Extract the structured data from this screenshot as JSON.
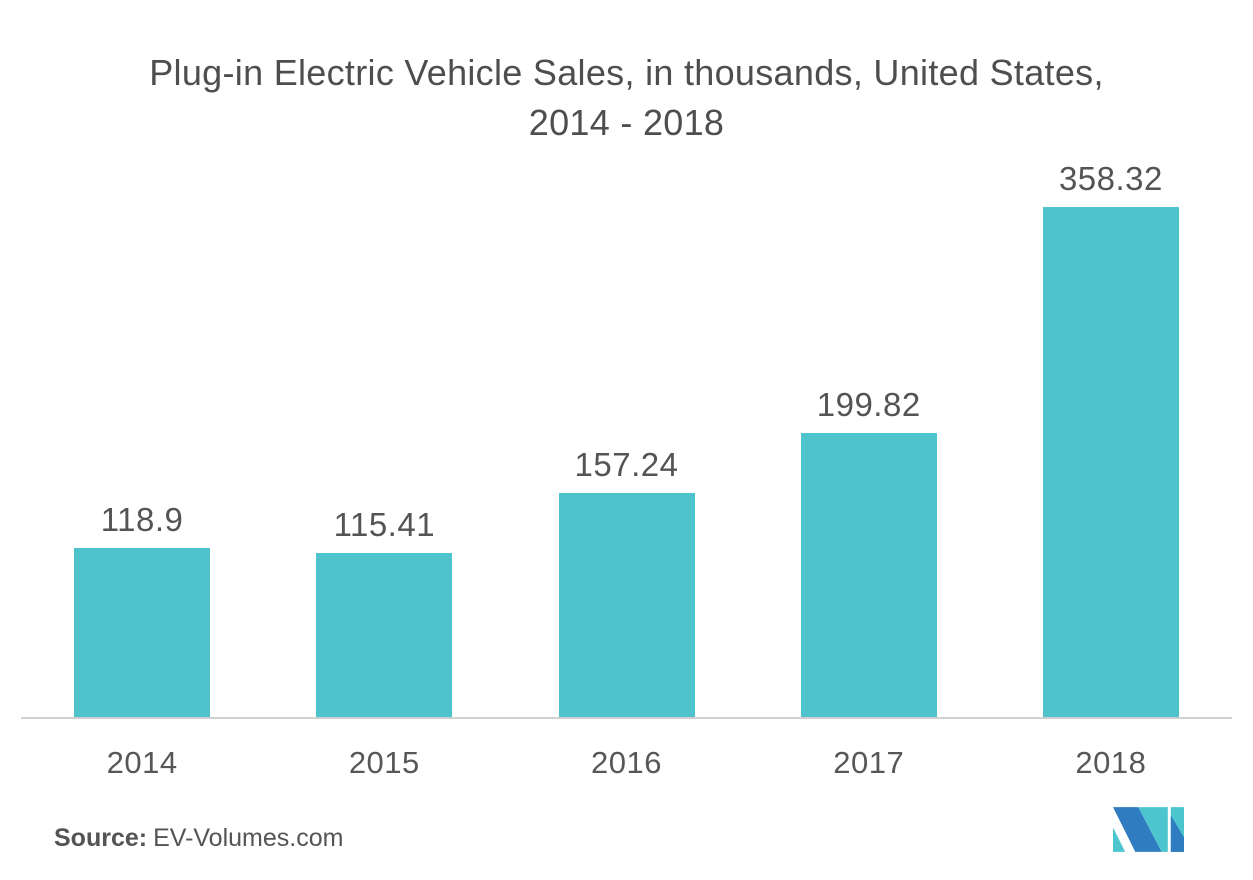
{
  "header": {
    "title_line1": "Plug-in Electric Vehicle Sales, in thousands, United States,",
    "title_line2": "2014 - 2018"
  },
  "chart_data": {
    "type": "bar",
    "title": "Plug-in Electric Vehicle Sales, in thousands, United States, 2014 - 2018",
    "categories": [
      "2014",
      "2015",
      "2016",
      "2017",
      "2018"
    ],
    "values": [
      118.9,
      115.41,
      157.24,
      199.82,
      358.32
    ],
    "value_labels": [
      "118.9",
      "115.41",
      "157.24",
      "199.82",
      "358.32"
    ],
    "xlabel": "",
    "ylabel": "",
    "ylim": [
      0,
      380
    ],
    "grid": false,
    "legend": "none",
    "bar_color": "#4EC3CB",
    "value_label_color": "#545457",
    "tick_label_color": "#57575A",
    "axis_line_color": "#D0D0D0"
  },
  "footer": {
    "source_label": "Source:",
    "source_value": "EV-Volumes.com"
  },
  "logo": {
    "name": "mordor-intelligence-logo",
    "blue": "#2F7CC0",
    "teal": "#4CC5CE"
  }
}
